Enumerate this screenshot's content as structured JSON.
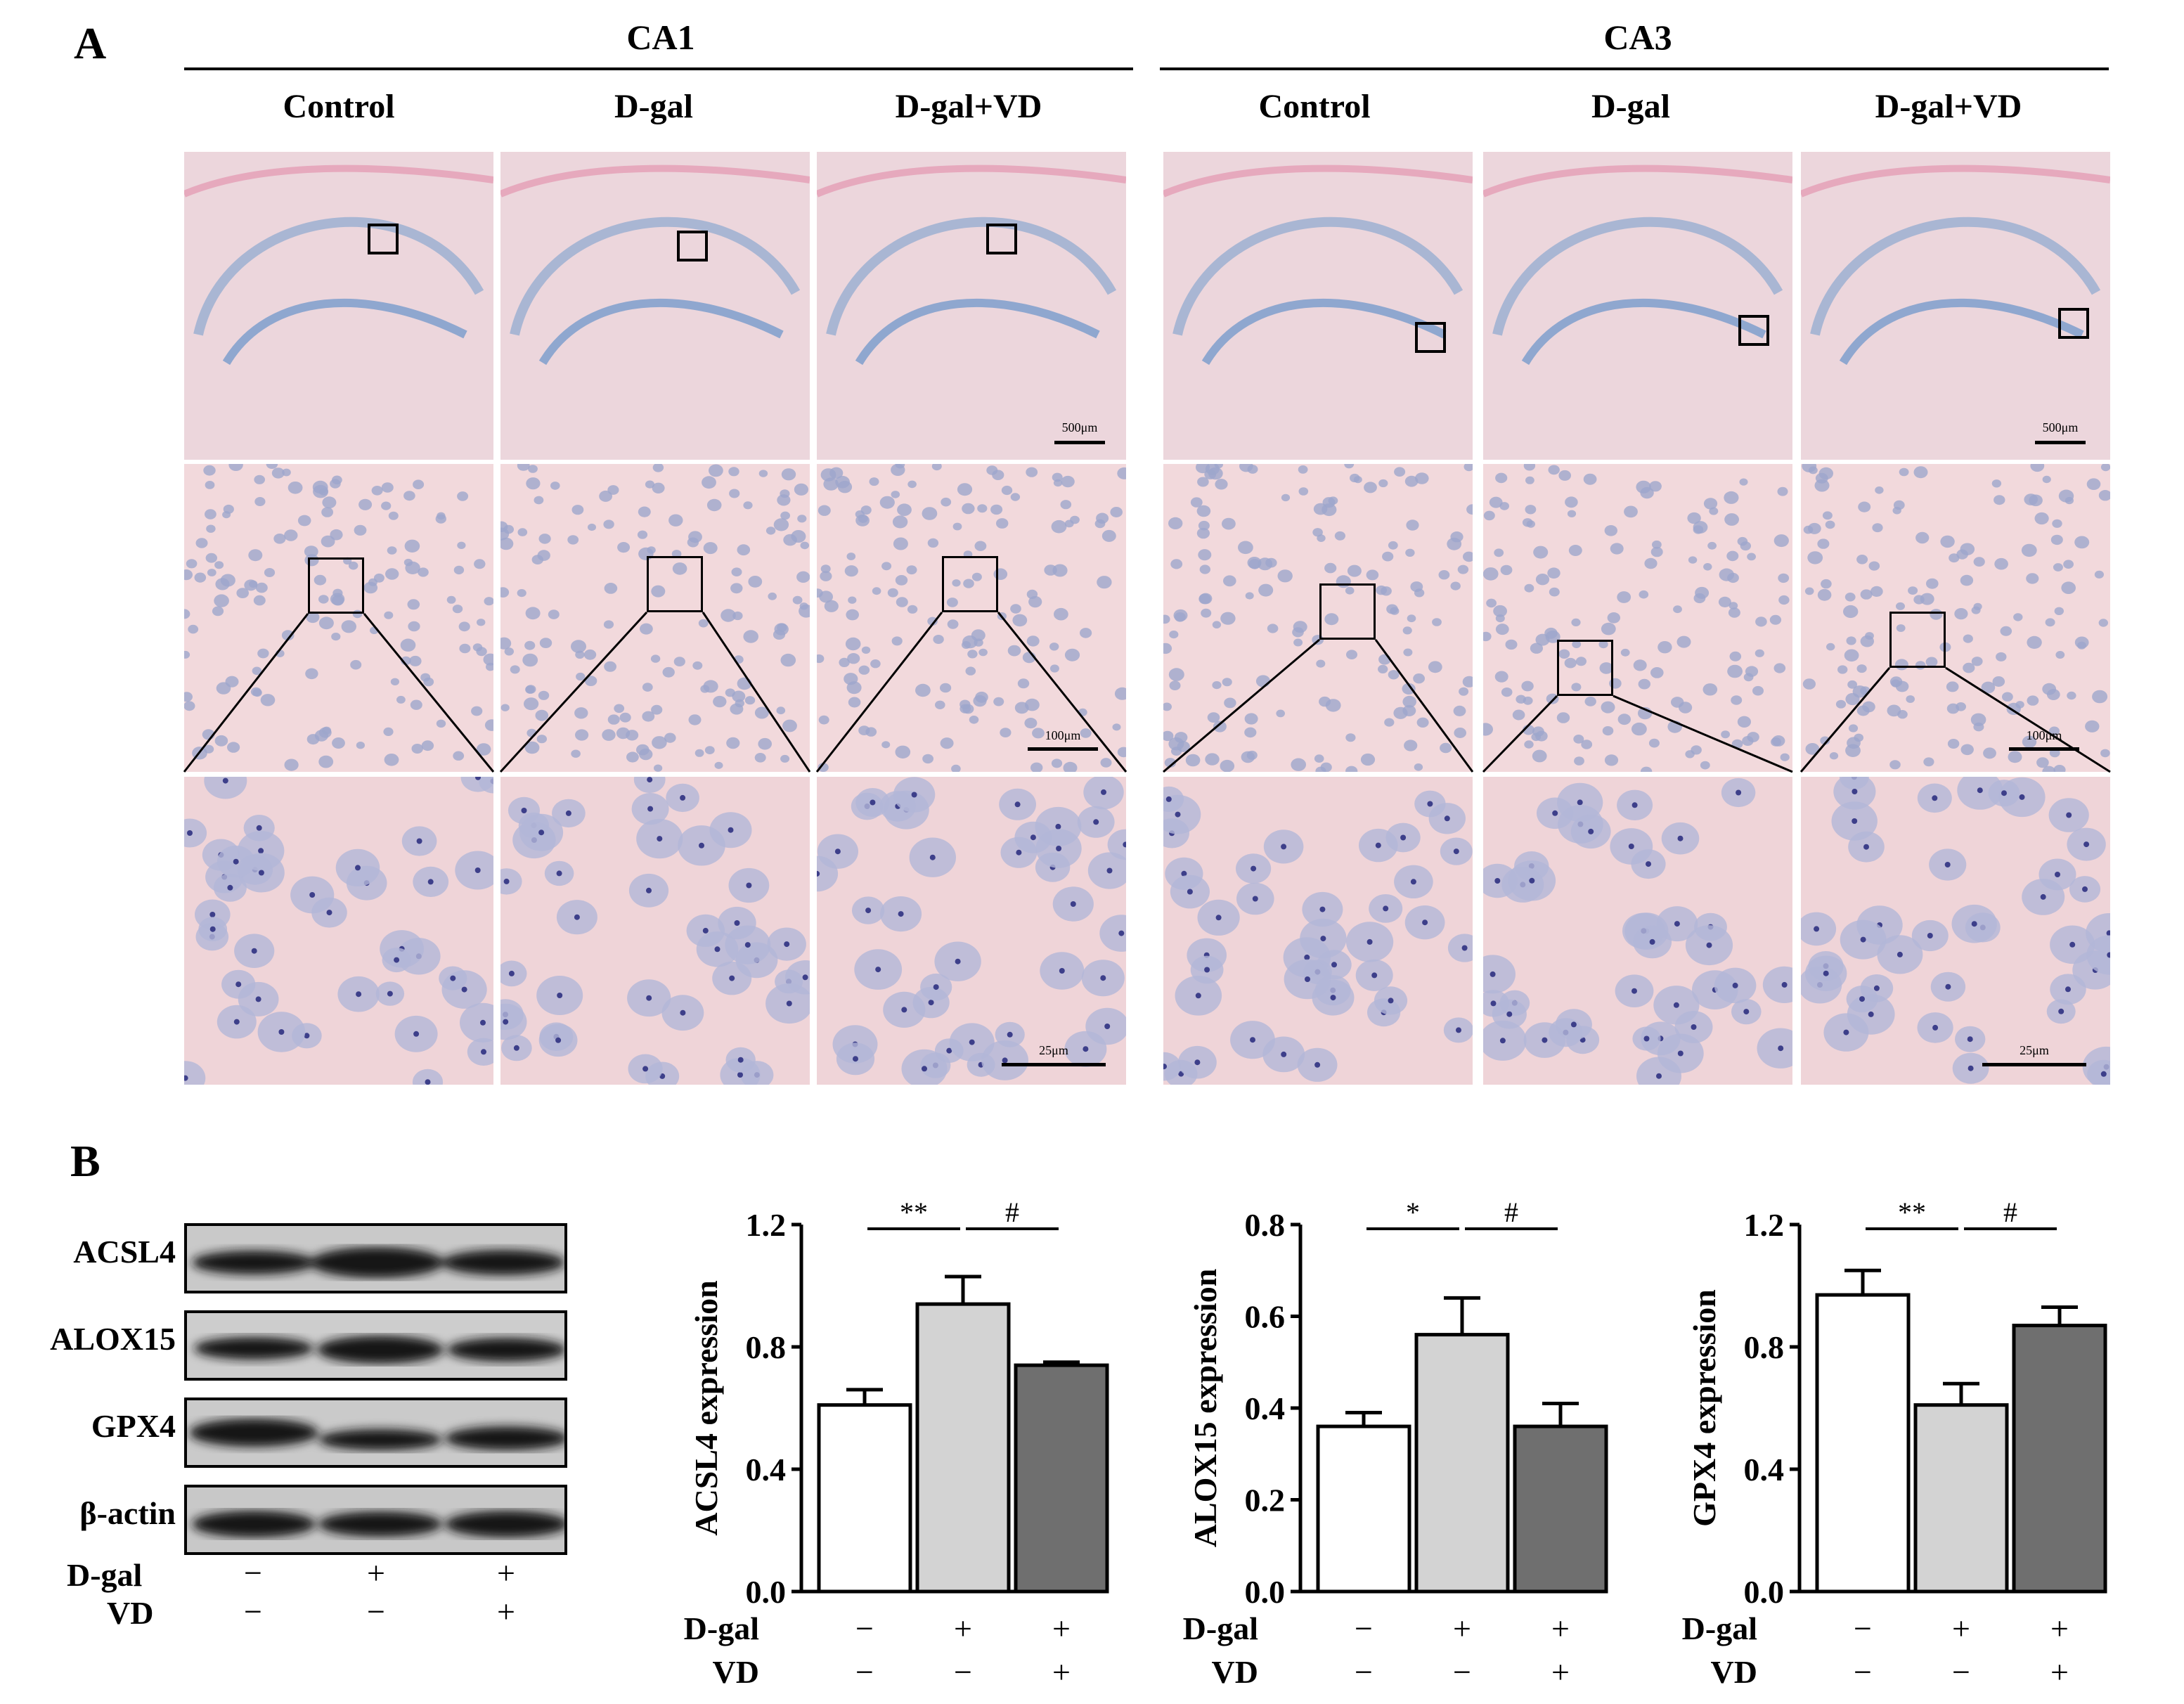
{
  "panelA": {
    "letter": "A",
    "regions": [
      {
        "name": "CA1",
        "columns": [
          "Control",
          "D-gal",
          "D-gal+VD"
        ]
      },
      {
        "name": "CA3",
        "columns": [
          "Control",
          "D-gal",
          "D-gal+VD"
        ]
      }
    ],
    "scale_bars": [
      "500μm",
      "100μm",
      "25μm"
    ]
  },
  "panelB": {
    "letter": "B",
    "blot": {
      "rows": [
        "ACSL4",
        "ALOX15",
        "GPX4",
        "β-actin"
      ],
      "treatments": [
        {
          "label": "D-gal",
          "signs": [
            "−",
            "+",
            "+"
          ]
        },
        {
          "label": "VD",
          "signs": [
            "−",
            "−",
            "+"
          ]
        }
      ]
    },
    "treatments": [
      {
        "label": "D-gal",
        "signs": [
          "−",
          "+",
          "+"
        ]
      },
      {
        "label": "VD",
        "signs": [
          "−",
          "−",
          "+"
        ]
      }
    ]
  },
  "chart_data": [
    {
      "type": "bar",
      "ylabel": "ACSL4 expression",
      "ylim": [
        0,
        1.2
      ],
      "yticks": [
        "0.0",
        "0.4",
        "0.8",
        "1.2"
      ],
      "values": [
        0.61,
        0.94,
        0.74
      ],
      "errors": [
        0.05,
        0.09,
        0.01
      ],
      "bar_colors": [
        "#ffffff",
        "#d3d3d3",
        "#6f6f6f"
      ],
      "significance": [
        {
          "from": 0,
          "to": 1,
          "label": "**"
        },
        {
          "from": 1,
          "to": 2,
          "label": "#"
        }
      ]
    },
    {
      "type": "bar",
      "ylabel": "ALOX15 expression",
      "ylim": [
        0,
        0.8
      ],
      "yticks": [
        "0.0",
        "0.2",
        "0.4",
        "0.6",
        "0.8"
      ],
      "values": [
        0.36,
        0.56,
        0.36
      ],
      "errors": [
        0.03,
        0.08,
        0.05
      ],
      "bar_colors": [
        "#ffffff",
        "#d3d3d3",
        "#6f6f6f"
      ],
      "significance": [
        {
          "from": 0,
          "to": 1,
          "label": "*"
        },
        {
          "from": 1,
          "to": 2,
          "label": "#"
        }
      ]
    },
    {
      "type": "bar",
      "ylabel": "GPX4 expression",
      "ylim": [
        0,
        1.2
      ],
      "yticks": [
        "0.0",
        "0.4",
        "0.8",
        "1.2"
      ],
      "values": [
        0.97,
        0.61,
        0.87
      ],
      "errors": [
        0.08,
        0.07,
        0.06
      ],
      "bar_colors": [
        "#ffffff",
        "#d3d3d3",
        "#6f6f6f"
      ],
      "significance": [
        {
          "from": 0,
          "to": 1,
          "label": "**"
        },
        {
          "from": 1,
          "to": 2,
          "label": "#"
        }
      ]
    }
  ]
}
